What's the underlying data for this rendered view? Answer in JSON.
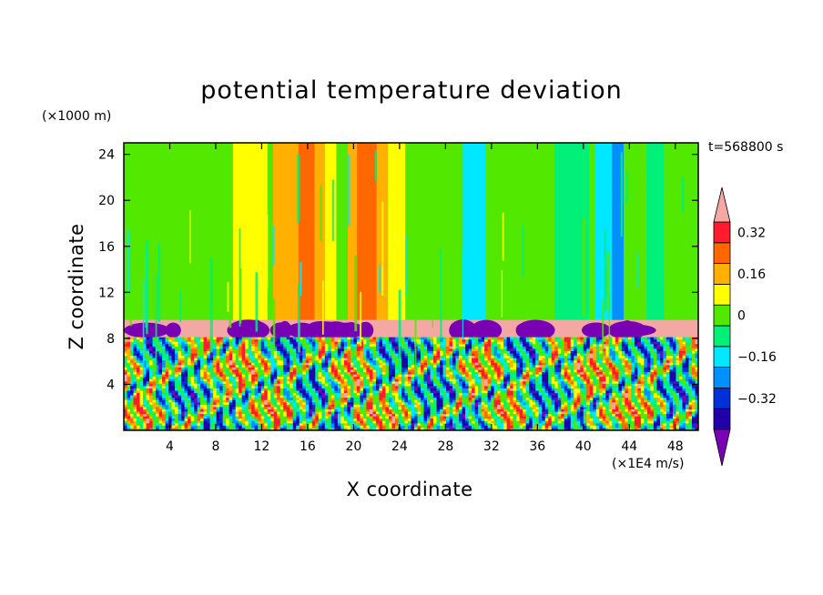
{
  "chart_data": {
    "type": "heatmap",
    "title": "potential temperature deviation",
    "xlabel": "X coordinate",
    "ylabel": "Z coordinate",
    "x_unit": "(×1E4 m/s)",
    "y_unit": "(×1000 m)",
    "time_label": "t=568800 s",
    "xlim": [
      0,
      50
    ],
    "ylim": [
      0,
      25
    ],
    "x_ticks": [
      4,
      8,
      12,
      16,
      20,
      24,
      28,
      32,
      36,
      40,
      44,
      48
    ],
    "y_ticks": [
      4,
      8,
      12,
      16,
      20,
      24
    ],
    "colorbar": {
      "levels": [
        -0.48,
        -0.4,
        -0.32,
        -0.24,
        -0.16,
        -0.08,
        0,
        0.08,
        0.16,
        0.24,
        0.32,
        0.4,
        0.48
      ],
      "colors": [
        "#7a00b4",
        "#2200a8",
        "#0030d8",
        "#0090ff",
        "#00e8ff",
        "#00f07a",
        "#52e800",
        "#ffff00",
        "#ffb000",
        "#ff6800",
        "#ff1c2c",
        "#f4a8a4"
      ],
      "tick_values": [
        0.32,
        0.16,
        0,
        -0.16,
        -0.32
      ],
      "tick_labels": [
        "0.32",
        "0.16",
        "0",
        "−0.16",
        "−0.32"
      ],
      "extend": "both"
    },
    "upper_field_columns": [
      {
        "x": [
          0,
          50
        ],
        "value": 0.02
      },
      {
        "x": [
          5,
          9
        ],
        "value": 0.05
      },
      {
        "x": [
          9.5,
          12.5
        ],
        "value": 0.1
      },
      {
        "x": [
          13,
          14.5
        ],
        "value": 0.17
      },
      {
        "x": [
          14.5,
          17.5
        ],
        "value": 0.22
      },
      {
        "x": [
          15.2,
          16.6
        ],
        "value": 0.29
      },
      {
        "x": [
          17.5,
          18.5
        ],
        "value": 0.13
      },
      {
        "x": [
          18.5,
          19.5
        ],
        "value": 0.06
      },
      {
        "x": [
          19.5,
          23
        ],
        "value": 0.22
      },
      {
        "x": [
          20.3,
          22
        ],
        "value": 0.3
      },
      {
        "x": [
          23,
          24.5
        ],
        "value": 0.13
      },
      {
        "x": [
          26,
          27.5
        ],
        "value": 0.06
      },
      {
        "x": [
          29.5,
          31.5
        ],
        "value": -0.12
      },
      {
        "x": [
          33.5,
          36
        ],
        "value": 0.06
      },
      {
        "x": [
          37.5,
          40.5
        ],
        "value": -0.04
      },
      {
        "x": [
          41,
          42.5
        ],
        "value": -0.12
      },
      {
        "x": [
          42.5,
          43.5
        ],
        "value": -0.22
      },
      {
        "x": [
          44,
          45.5
        ],
        "value": 0.06
      },
      {
        "x": [
          45.5,
          47
        ],
        "value": -0.04
      }
    ],
    "inversion_band": {
      "z": [
        8.1,
        9.6
      ],
      "value": 0.47
    },
    "mixed_layer": {
      "z": [
        0,
        8.1
      ],
      "description_value_range": [
        -0.48,
        0.48
      ]
    }
  }
}
